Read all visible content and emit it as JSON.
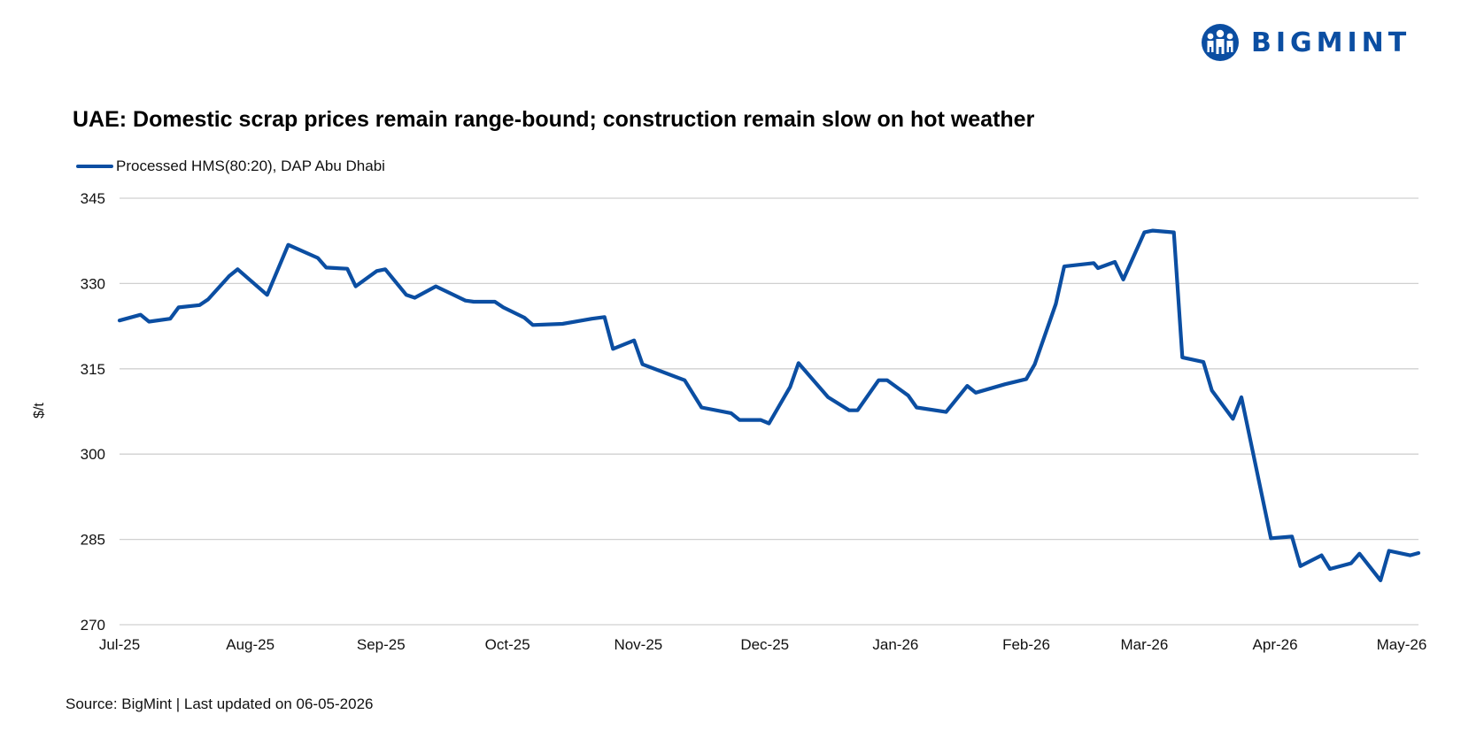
{
  "brand": {
    "name": "BIGMINT",
    "color": "#0b4ea2",
    "icon": "people-globe-logo-icon"
  },
  "footer": {
    "source": "Source: BigMint | Last updated on 06-05-2026"
  },
  "chart_data": {
    "type": "line",
    "title": "UAE: Domestic scrap prices remain range-bound; construction remain slow on hot weather",
    "xlabel": "",
    "ylabel": "$/t",
    "ylim": [
      270,
      345
    ],
    "yticks": [
      270,
      285,
      300,
      315,
      330,
      345
    ],
    "grid": true,
    "legend_position": "top-left",
    "x_tick_labels": [
      "Jul-25",
      "Aug-25",
      "Sep-25",
      "Oct-25",
      "Nov-25",
      "Dec-25",
      "Jan-26",
      "Feb-26",
      "Mar-26",
      "Apr-26",
      "May-26"
    ],
    "x_tick_dates": [
      "2025-07-01",
      "2025-08-01",
      "2025-09-01",
      "2025-10-01",
      "2025-11-01",
      "2025-12-01",
      "2026-01-01",
      "2026-02-01",
      "2026-03-01",
      "2026-04-01",
      "2026-05-01"
    ],
    "series": [
      {
        "name": "Processed HMS(80:20), DAP Abu Dhabi",
        "color": "#0b4ea2",
        "points": [
          {
            "x": "2025-07-01",
            "y": 323.5
          },
          {
            "x": "2025-07-06",
            "y": 324.5
          },
          {
            "x": "2025-07-08",
            "y": 323.3
          },
          {
            "x": "2025-07-13",
            "y": 323.8
          },
          {
            "x": "2025-07-15",
            "y": 325.8
          },
          {
            "x": "2025-07-20",
            "y": 326.2
          },
          {
            "x": "2025-07-22",
            "y": 327.2
          },
          {
            "x": "2025-07-27",
            "y": 331.3
          },
          {
            "x": "2025-07-29",
            "y": 332.5
          },
          {
            "x": "2025-08-05",
            "y": 328.0
          },
          {
            "x": "2025-08-10",
            "y": 336.8
          },
          {
            "x": "2025-08-17",
            "y": 334.5
          },
          {
            "x": "2025-08-19",
            "y": 332.8
          },
          {
            "x": "2025-08-24",
            "y": 332.6
          },
          {
            "x": "2025-08-26",
            "y": 329.5
          },
          {
            "x": "2025-08-31",
            "y": 332.2
          },
          {
            "x": "2025-09-02",
            "y": 332.5
          },
          {
            "x": "2025-09-07",
            "y": 328.0
          },
          {
            "x": "2025-09-09",
            "y": 327.5
          },
          {
            "x": "2025-09-14",
            "y": 329.5
          },
          {
            "x": "2025-09-21",
            "y": 327.0
          },
          {
            "x": "2025-09-23",
            "y": 326.8
          },
          {
            "x": "2025-09-28",
            "y": 326.8
          },
          {
            "x": "2025-09-30",
            "y": 325.8
          },
          {
            "x": "2025-10-05",
            "y": 324.0
          },
          {
            "x": "2025-10-07",
            "y": 322.7
          },
          {
            "x": "2025-10-14",
            "y": 322.9
          },
          {
            "x": "2025-10-21",
            "y": 323.8
          },
          {
            "x": "2025-10-24",
            "y": 324.1
          },
          {
            "x": "2025-10-26",
            "y": 318.5
          },
          {
            "x": "2025-10-31",
            "y": 320.0
          },
          {
            "x": "2025-11-02",
            "y": 315.8
          },
          {
            "x": "2025-11-12",
            "y": 313.0
          },
          {
            "x": "2025-11-16",
            "y": 308.2
          },
          {
            "x": "2025-11-23",
            "y": 307.2
          },
          {
            "x": "2025-11-25",
            "y": 306.0
          },
          {
            "x": "2025-11-30",
            "y": 306.0
          },
          {
            "x": "2025-12-02",
            "y": 305.4
          },
          {
            "x": "2025-12-07",
            "y": 311.8
          },
          {
            "x": "2025-12-09",
            "y": 316.0
          },
          {
            "x": "2025-12-16",
            "y": 310.0
          },
          {
            "x": "2025-12-21",
            "y": 307.7
          },
          {
            "x": "2025-12-23",
            "y": 307.7
          },
          {
            "x": "2025-12-28",
            "y": 313.0
          },
          {
            "x": "2025-12-30",
            "y": 313.0
          },
          {
            "x": "2026-01-04",
            "y": 310.3
          },
          {
            "x": "2026-01-06",
            "y": 308.2
          },
          {
            "x": "2026-01-13",
            "y": 307.4
          },
          {
            "x": "2026-01-18",
            "y": 312.0
          },
          {
            "x": "2026-01-20",
            "y": 310.8
          },
          {
            "x": "2026-01-27",
            "y": 312.3
          },
          {
            "x": "2026-02-01",
            "y": 313.2
          },
          {
            "x": "2026-02-03",
            "y": 315.8
          },
          {
            "x": "2026-02-08",
            "y": 326.4
          },
          {
            "x": "2026-02-10",
            "y": 333.0
          },
          {
            "x": "2026-02-17",
            "y": 333.6
          },
          {
            "x": "2026-02-18",
            "y": 332.7
          },
          {
            "x": "2026-02-22",
            "y": 333.8
          },
          {
            "x": "2026-02-24",
            "y": 330.7
          },
          {
            "x": "2026-03-01",
            "y": 339.0
          },
          {
            "x": "2026-03-03",
            "y": 339.3
          },
          {
            "x": "2026-03-08",
            "y": 339.0
          },
          {
            "x": "2026-03-10",
            "y": 317.0
          },
          {
            "x": "2026-03-15",
            "y": 316.2
          },
          {
            "x": "2026-03-17",
            "y": 311.2
          },
          {
            "x": "2026-03-22",
            "y": 306.2
          },
          {
            "x": "2026-03-24",
            "y": 310.0
          },
          {
            "x": "2026-03-31",
            "y": 285.2
          },
          {
            "x": "2026-04-05",
            "y": 285.5
          },
          {
            "x": "2026-04-07",
            "y": 280.3
          },
          {
            "x": "2026-04-12",
            "y": 282.2
          },
          {
            "x": "2026-04-14",
            "y": 279.8
          },
          {
            "x": "2026-04-19",
            "y": 280.8
          },
          {
            "x": "2026-04-21",
            "y": 282.5
          },
          {
            "x": "2026-04-26",
            "y": 277.8
          },
          {
            "x": "2026-04-28",
            "y": 283.0
          },
          {
            "x": "2026-05-03",
            "y": 282.2
          },
          {
            "x": "2026-05-05",
            "y": 282.6
          }
        ]
      }
    ]
  }
}
